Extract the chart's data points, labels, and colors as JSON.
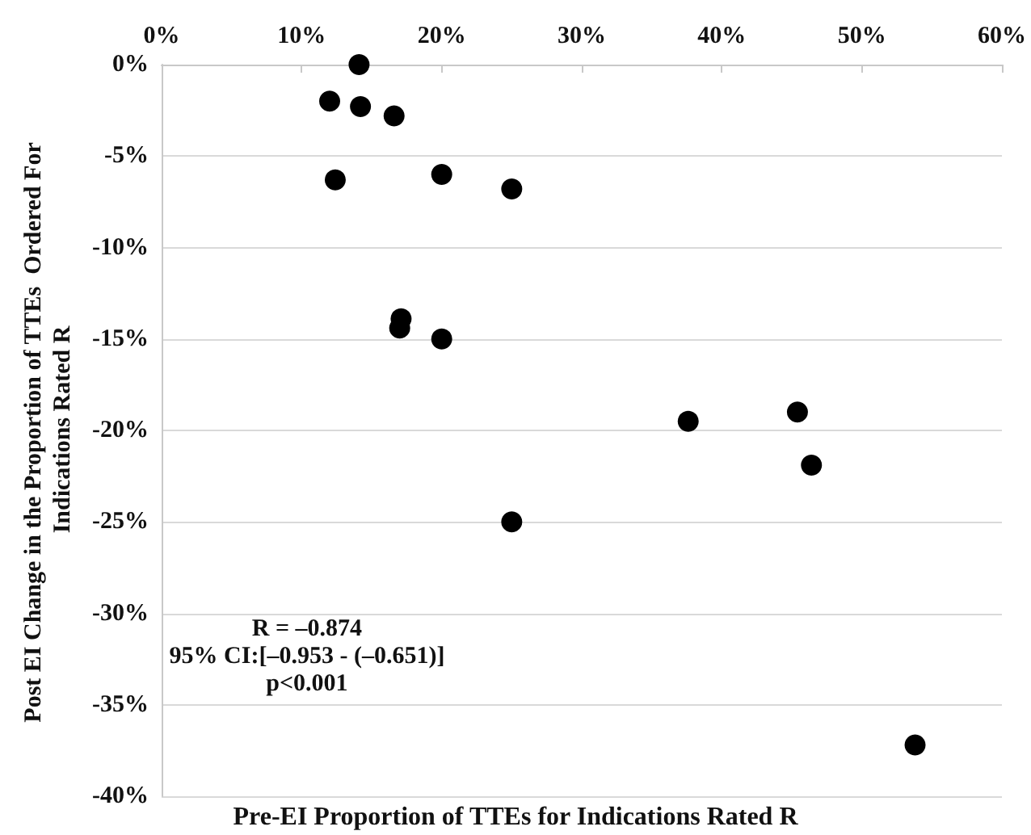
{
  "chart_data": {
    "type": "scatter",
    "xlabel": "Pre-EI Proportion of TTEs for Indications Rated R",
    "ylabel": "Post EI Change in the Proportion of TTEs  Ordered For Indications Rated R",
    "x": [
      14.1,
      12,
      14.2,
      16.6,
      12.4,
      20,
      25,
      17.1,
      17,
      20,
      37.6,
      45.4,
      46.4,
      25,
      53.8
    ],
    "series": [
      {
        "color": "#000000",
        "values": [
          0,
          -2,
          -2.3,
          -2.8,
          -6.3,
          -6,
          -6.8,
          -13.9,
          -14.4,
          -15,
          -19.5,
          -19,
          -21.9,
          -25,
          -37.2
        ]
      }
    ],
    "xlim": [
      0,
      60
    ],
    "xticks": [
      {
        "value": 0,
        "label": "0%"
      },
      {
        "value": 10,
        "label": "10%"
      },
      {
        "value": 20,
        "label": "20%"
      },
      {
        "value": 30,
        "label": "30%"
      },
      {
        "value": 40,
        "label": "40%"
      },
      {
        "value": 50,
        "label": "50%"
      },
      {
        "value": 60,
        "label": "60%"
      }
    ],
    "ylim": [
      -40,
      0
    ],
    "yticks": [
      {
        "value": 0,
        "label": "0%"
      },
      {
        "value": -5,
        "label": "-5%"
      },
      {
        "value": -10,
        "label": "-10%"
      },
      {
        "value": -15,
        "label": "-15%"
      },
      {
        "value": -20,
        "label": "-20%"
      },
      {
        "value": -25,
        "label": "-25%"
      },
      {
        "value": -30,
        "label": "-30%"
      },
      {
        "value": -35,
        "label": "-35%"
      },
      {
        "value": -40,
        "label": "-40%"
      }
    ],
    "grid": "y",
    "marker": "circle",
    "annotations": [
      "R = –0.874",
      "95% CI:[–0.953 - (–0.651)]",
      "p<0.001"
    ]
  }
}
